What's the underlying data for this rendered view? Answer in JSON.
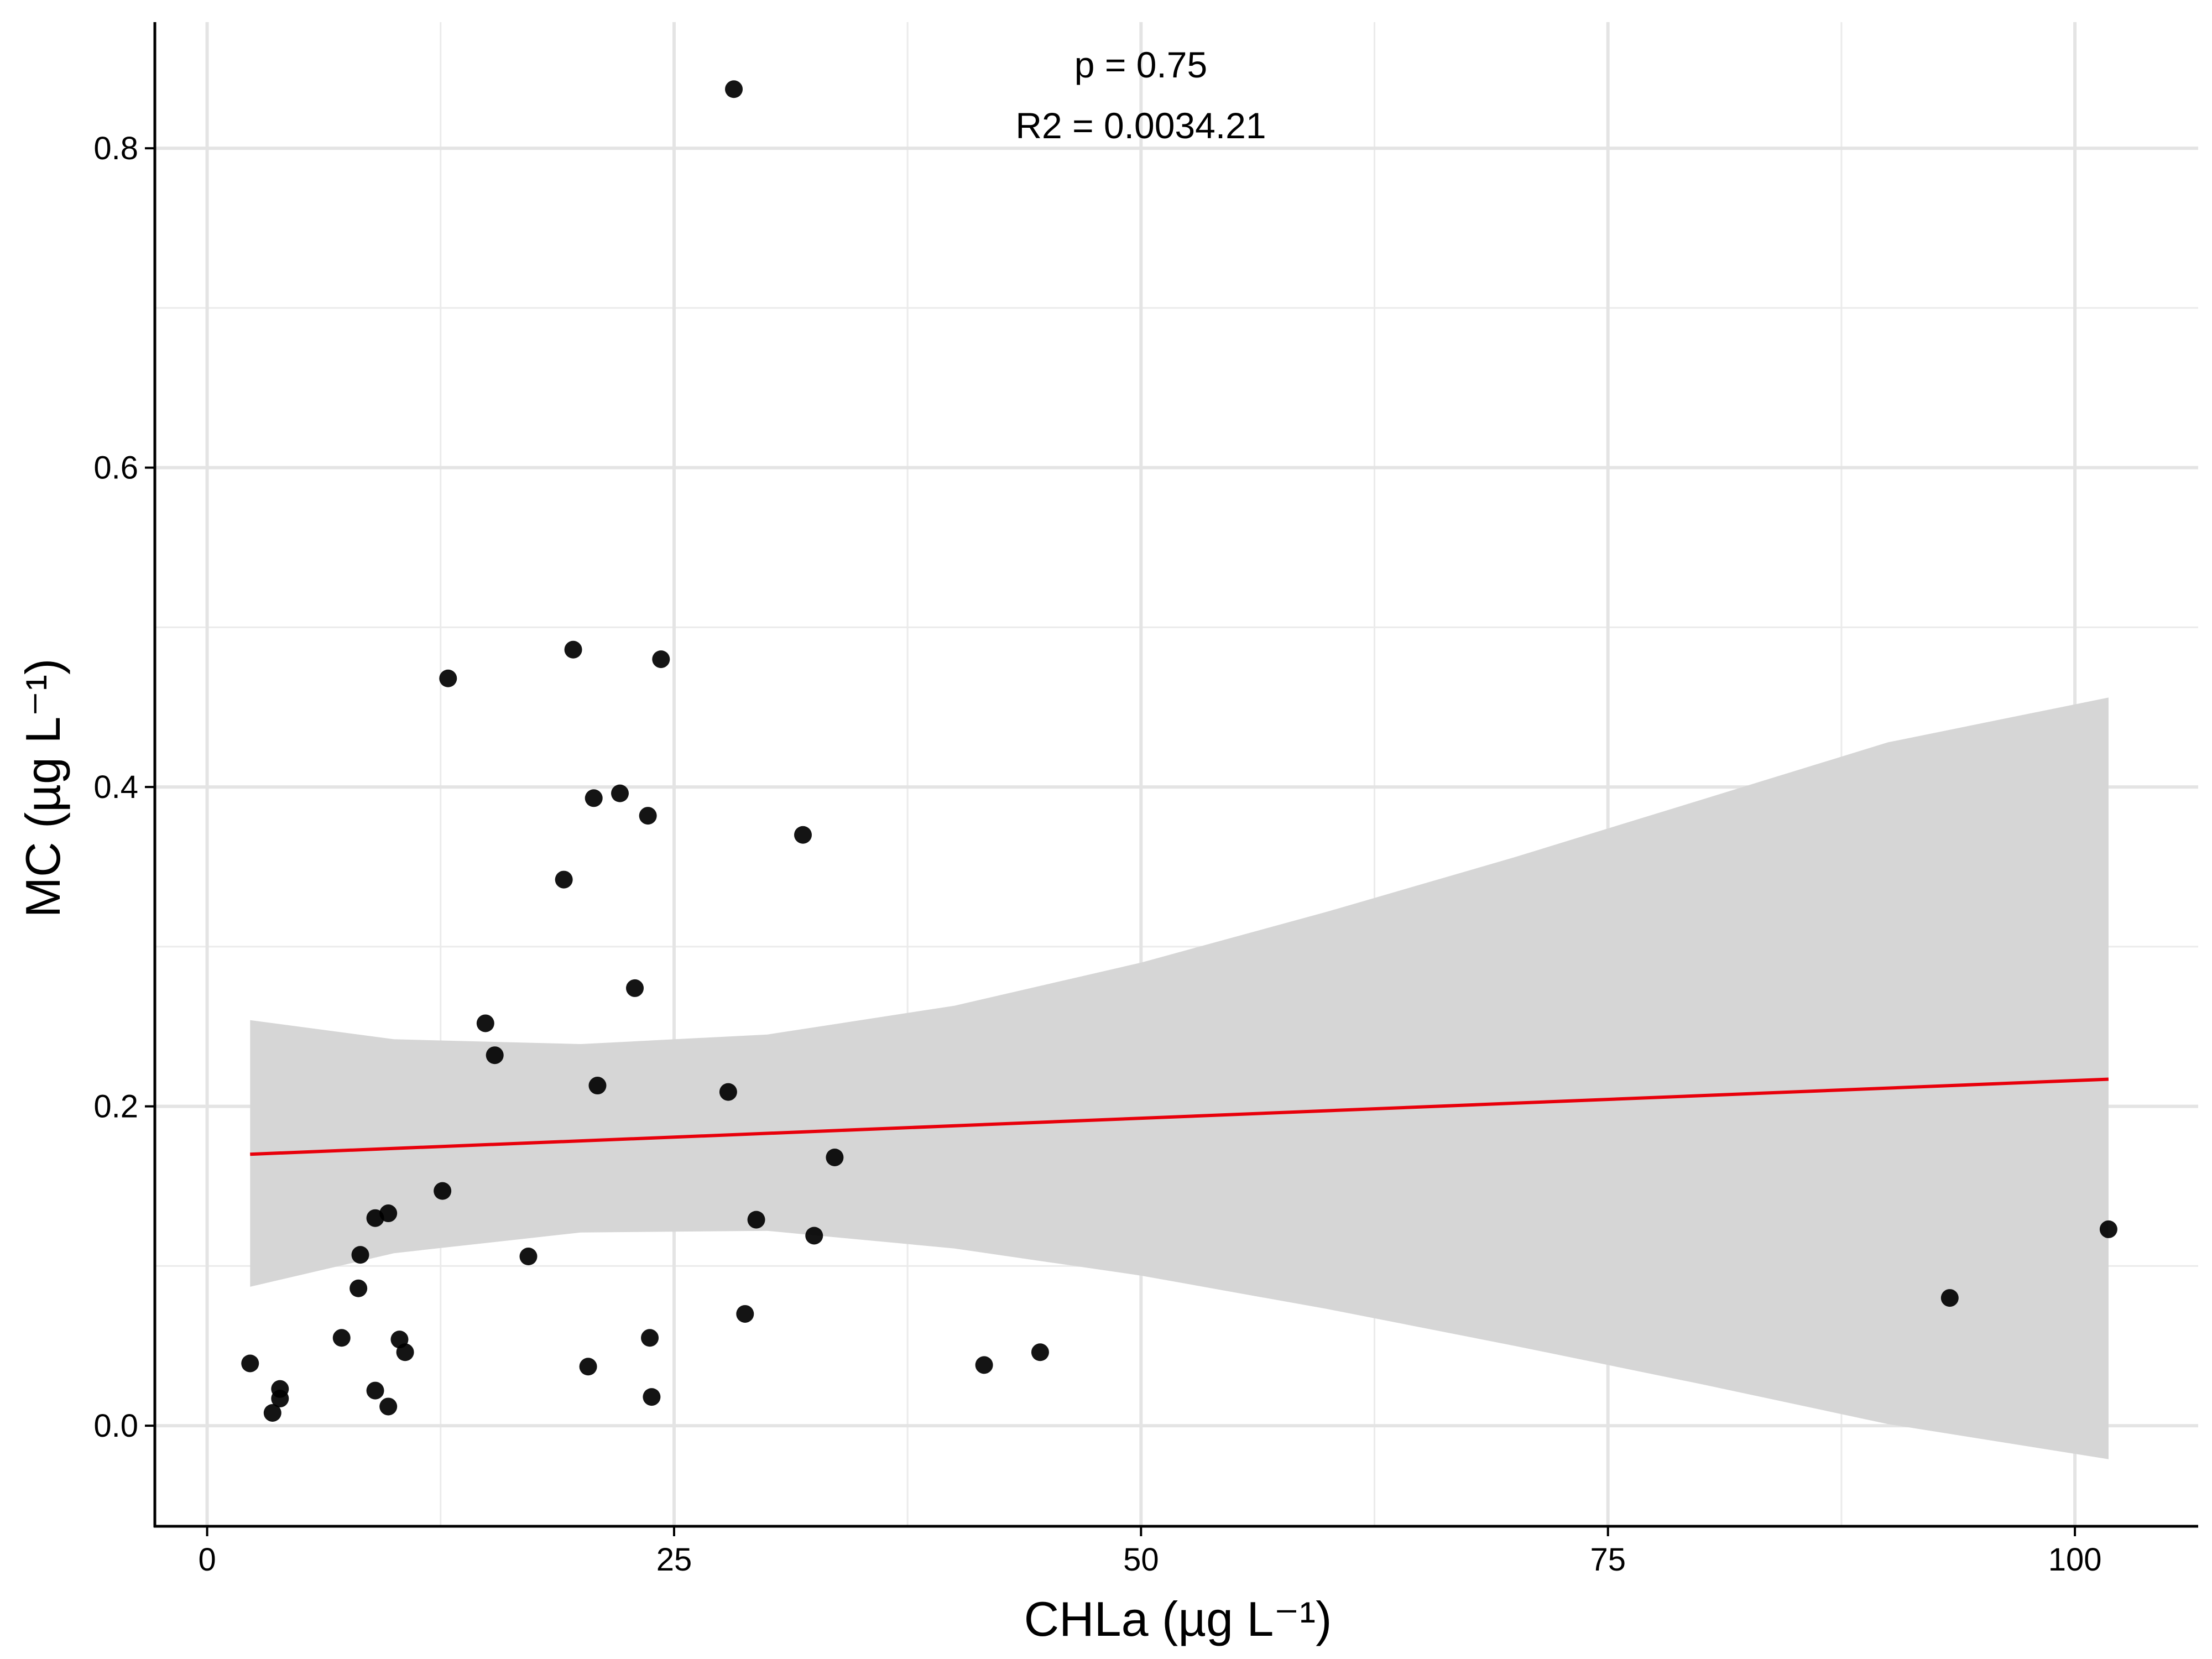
{
  "chart_data": {
    "type": "scatter",
    "title": "",
    "xlabel": "CHLa (µg L⁻¹)",
    "ylabel": "MC (µg L⁻¹)",
    "xlim": [
      -2.8,
      106.6
    ],
    "ylim": [
      -0.063,
      0.879
    ],
    "x_ticks": [
      0,
      25,
      50,
      75,
      100
    ],
    "x_tick_labels": [
      "0",
      "25",
      "50",
      "75",
      "100"
    ],
    "x_minor_ticks": [
      12.5,
      37.5,
      62.5,
      87.5
    ],
    "y_ticks": [
      0.0,
      0.2,
      0.4,
      0.6,
      0.8
    ],
    "y_tick_labels": [
      "0.0",
      "0.2",
      "0.4",
      "0.6",
      "0.8"
    ],
    "y_minor_ticks": [
      0.1,
      0.3,
      0.5,
      0.7
    ],
    "grid": true,
    "annotations": [
      "p = 0.75",
      "R2 = 0.0034.21"
    ],
    "point_color": "#000000",
    "points": [
      {
        "x": 2.3,
        "y": 0.039
      },
      {
        "x": 3.5,
        "y": 0.008
      },
      {
        "x": 3.9,
        "y": 0.017
      },
      {
        "x": 3.9,
        "y": 0.023
      },
      {
        "x": 7.2,
        "y": 0.055
      },
      {
        "x": 8.1,
        "y": 0.086
      },
      {
        "x": 8.2,
        "y": 0.107
      },
      {
        "x": 9.0,
        "y": 0.13
      },
      {
        "x": 9.0,
        "y": 0.022
      },
      {
        "x": 9.7,
        "y": 0.133
      },
      {
        "x": 9.7,
        "y": 0.012
      },
      {
        "x": 10.3,
        "y": 0.054
      },
      {
        "x": 10.6,
        "y": 0.046
      },
      {
        "x": 12.6,
        "y": 0.147
      },
      {
        "x": 12.9,
        "y": 0.468
      },
      {
        "x": 14.9,
        "y": 0.252
      },
      {
        "x": 15.4,
        "y": 0.232
      },
      {
        "x": 17.2,
        "y": 0.106
      },
      {
        "x": 19.1,
        "y": 0.342
      },
      {
        "x": 19.6,
        "y": 0.486
      },
      {
        "x": 20.4,
        "y": 0.037
      },
      {
        "x": 20.7,
        "y": 0.393
      },
      {
        "x": 20.9,
        "y": 0.213
      },
      {
        "x": 22.1,
        "y": 0.396
      },
      {
        "x": 22.9,
        "y": 0.274
      },
      {
        "x": 23.6,
        "y": 0.382
      },
      {
        "x": 23.7,
        "y": 0.055
      },
      {
        "x": 23.8,
        "y": 0.018
      },
      {
        "x": 24.3,
        "y": 0.48
      },
      {
        "x": 27.9,
        "y": 0.209
      },
      {
        "x": 28.2,
        "y": 0.837
      },
      {
        "x": 28.8,
        "y": 0.07
      },
      {
        "x": 29.4,
        "y": 0.129
      },
      {
        "x": 31.9,
        "y": 0.37
      },
      {
        "x": 32.5,
        "y": 0.119
      },
      {
        "x": 33.6,
        "y": 0.168
      },
      {
        "x": 41.6,
        "y": 0.038
      },
      {
        "x": 44.6,
        "y": 0.046
      },
      {
        "x": 93.3,
        "y": 0.08
      },
      {
        "x": 101.8,
        "y": 0.123
      }
    ],
    "fit_line": {
      "color": "#e8000b",
      "x": [
        2.3,
        101.8
      ],
      "y": [
        0.17,
        0.217
      ]
    },
    "confidence_band": {
      "color": "#d6d6d6",
      "x": [
        2.3,
        10,
        20,
        30,
        40,
        50,
        60,
        70,
        80,
        90,
        101.8
      ],
      "upper": [
        0.254,
        0.242,
        0.239,
        0.245,
        0.263,
        0.29,
        0.322,
        0.356,
        0.392,
        0.428,
        0.456
      ],
      "lower": [
        0.087,
        0.108,
        0.121,
        0.122,
        0.111,
        0.094,
        0.073,
        0.05,
        0.026,
        0.001,
        -0.021
      ]
    }
  }
}
